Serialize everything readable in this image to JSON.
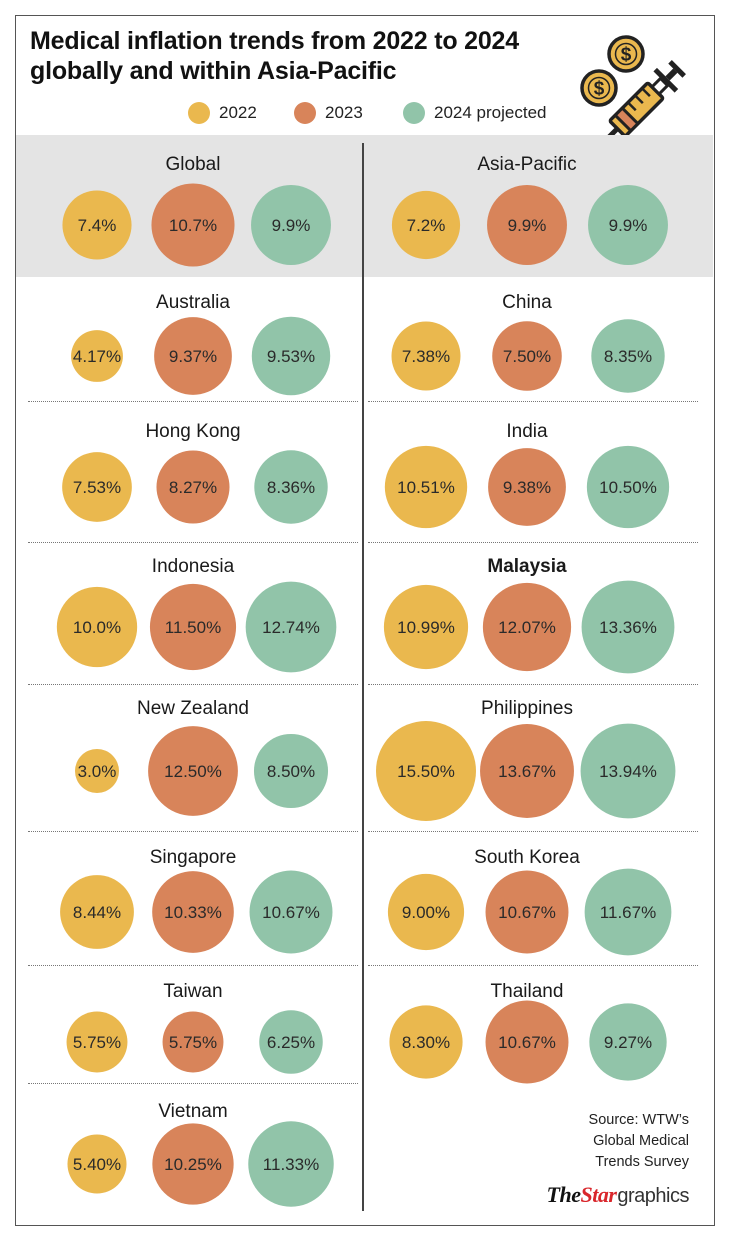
{
  "title": {
    "line1": "Medical inflation trends from 2022 to 2024",
    "line2": "globally and within Asia-Pacific"
  },
  "colors": {
    "2022": "#eab84e",
    "2023": "#d8845a",
    "2024": "#91c4a9",
    "band": "#e4e4e4"
  },
  "legend": [
    {
      "label": "2022",
      "color": "#eab84e"
    },
    {
      "label": "2023",
      "color": "#d8845a"
    },
    {
      "label": "2024 projected",
      "color": "#91c4a9"
    }
  ],
  "chart_data": {
    "type": "bubble",
    "title": "Medical inflation trends from 2022 to 2024 globally and within Asia-Pacific",
    "series": [
      "2022",
      "2023",
      "2024 projected"
    ],
    "regions": [
      {
        "name": "Global",
        "labels": [
          "7.4%",
          "10.7%",
          "9.9%"
        ],
        "values": [
          7.4,
          10.7,
          9.9
        ],
        "highlight": false
      },
      {
        "name": "Asia-Pacific",
        "labels": [
          "7.2%",
          "9.9%",
          "9.9%"
        ],
        "values": [
          7.2,
          9.9,
          9.9
        ],
        "highlight": false
      },
      {
        "name": "Australia",
        "labels": [
          "4.17%",
          "9.37%",
          "9.53%"
        ],
        "values": [
          4.17,
          9.37,
          9.53
        ],
        "highlight": false
      },
      {
        "name": "China",
        "labels": [
          "7.38%",
          "7.50%",
          "8.35%"
        ],
        "values": [
          7.38,
          7.5,
          8.35
        ],
        "highlight": false
      },
      {
        "name": "Hong Kong",
        "labels": [
          "7.53%",
          "8.27%",
          "8.36%"
        ],
        "values": [
          7.53,
          8.27,
          8.36
        ],
        "highlight": false
      },
      {
        "name": "India",
        "labels": [
          "10.51%",
          "9.38%",
          "10.50%"
        ],
        "values": [
          10.51,
          9.38,
          10.5
        ],
        "highlight": false
      },
      {
        "name": "Indonesia",
        "labels": [
          "10.0%",
          "11.50%",
          "12.74%"
        ],
        "values": [
          10.0,
          11.5,
          12.74
        ],
        "highlight": false
      },
      {
        "name": "Malaysia",
        "labels": [
          "10.99%",
          "12.07%",
          "13.36%"
        ],
        "values": [
          10.99,
          12.07,
          13.36
        ],
        "highlight": true
      },
      {
        "name": "New Zealand",
        "labels": [
          "3.0%",
          "12.50%",
          "8.50%"
        ],
        "values": [
          3.0,
          12.5,
          8.5
        ],
        "highlight": false
      },
      {
        "name": "Philippines",
        "labels": [
          "15.50%",
          "13.67%",
          "13.94%"
        ],
        "values": [
          15.5,
          13.67,
          13.94
        ],
        "highlight": false
      },
      {
        "name": "Singapore",
        "labels": [
          "8.44%",
          "10.33%",
          "10.67%"
        ],
        "values": [
          8.44,
          10.33,
          10.67
        ],
        "highlight": false
      },
      {
        "name": "South Korea",
        "labels": [
          "9.00%",
          "10.67%",
          "11.67%"
        ],
        "values": [
          9.0,
          10.67,
          11.67
        ],
        "highlight": false
      },
      {
        "name": "Taiwan",
        "labels": [
          "5.75%",
          "5.75%",
          "6.25%"
        ],
        "values": [
          5.75,
          5.75,
          6.25
        ],
        "highlight": false
      },
      {
        "name": "Thailand",
        "labels": [
          "8.30%",
          "10.67%",
          "9.27%"
        ],
        "values": [
          8.3,
          10.67,
          9.27
        ],
        "highlight": false
      },
      {
        "name": "Vietnam",
        "labels": [
          "5.40%",
          "10.25%",
          "11.33%"
        ],
        "values": [
          5.4,
          10.25,
          11.33
        ],
        "highlight": false
      }
    ]
  },
  "source": {
    "line1": "Source: WTW’s",
    "line2": "Global Medical",
    "line3": "Trends Survey"
  },
  "brand": {
    "the": "The",
    "star": "Star",
    "graphics": "graphics"
  },
  "illustration": {
    "icon": "coins-and-syringe-icon",
    "coin_symbol": "$"
  }
}
